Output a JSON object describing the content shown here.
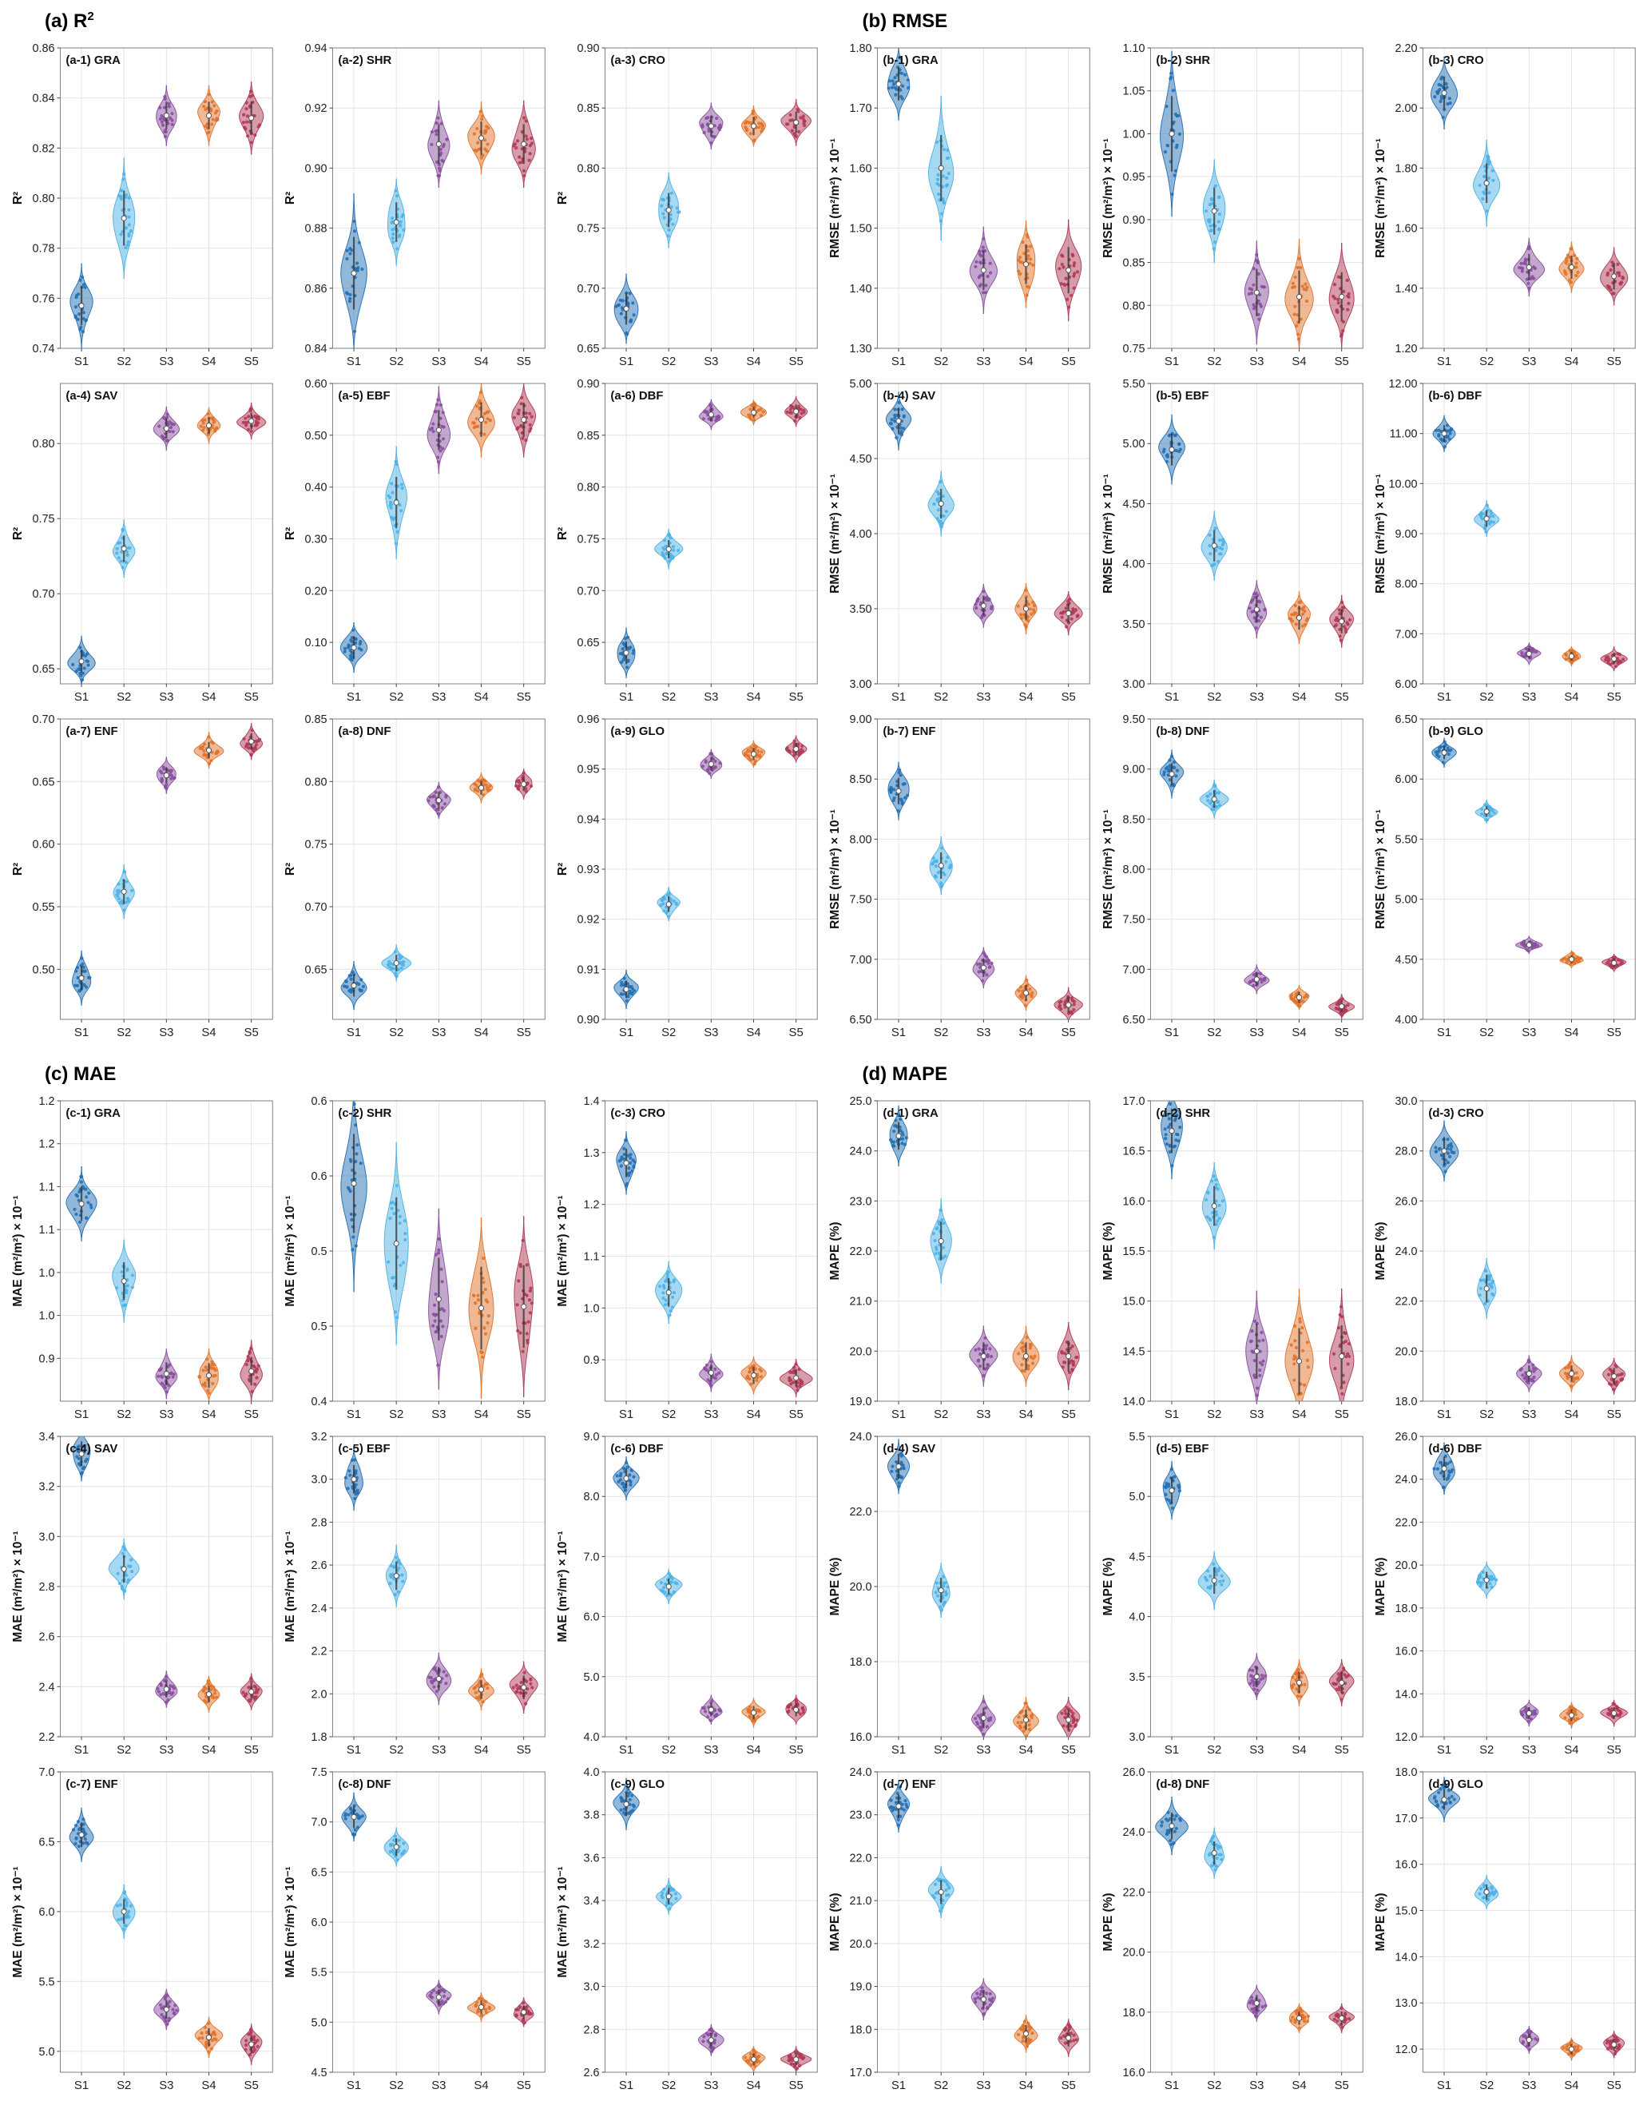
{
  "chart_data": {
    "type": "violin",
    "categories": [
      "S1",
      "S2",
      "S3",
      "S4",
      "S5"
    ],
    "colors": [
      "#2470b3",
      "#4fb2e5",
      "#8a4f9e",
      "#e0732c",
      "#b03a55"
    ],
    "grid": true,
    "panels": [
      {
        "id": "a",
        "title_main": "(a) R",
        "title_sup": "2",
        "ylabel": "R²",
        "subplots": [
          {
            "label": "(a-1) GRA",
            "ylim": [
              0.74,
              0.86
            ],
            "ytick0": 0.74,
            "ystep": 0.02,
            "ydec": 2,
            "medians": [
              0.757,
              0.792,
              0.833,
              0.833,
              0.832
            ],
            "spreads": [
              0.007,
              0.01,
              0.005,
              0.005,
              0.006
            ]
          },
          {
            "label": "(a-2) SHR",
            "ylim": [
              0.84,
              0.94
            ],
            "ytick0": 0.84,
            "ystep": 0.02,
            "ydec": 2,
            "medians": [
              0.865,
              0.882,
              0.908,
              0.91,
              0.908
            ],
            "spreads": [
              0.011,
              0.006,
              0.006,
              0.005,
              0.006
            ]
          },
          {
            "label": "(a-3) CRO",
            "ylim": [
              0.65,
              0.9
            ],
            "ytick0": 0.65,
            "ystep": 0.05,
            "ydec": 2,
            "medians": [
              0.683,
              0.765,
              0.835,
              0.835,
              0.838
            ],
            "spreads": [
              0.012,
              0.013,
              0.008,
              0.007,
              0.008
            ]
          },
          {
            "label": "(a-4) SAV",
            "ylim": [
              0.64,
              0.84
            ],
            "ytick0": 0.65,
            "ystep": 0.05,
            "ydec": 2,
            "medians": [
              0.655,
              0.73,
              0.81,
              0.812,
              0.815
            ],
            "spreads": [
              0.007,
              0.008,
              0.006,
              0.005,
              0.005
            ]
          },
          {
            "label": "(a-5) EBF",
            "ylim": [
              0.02,
              0.6
            ],
            "ytick0": 0.1,
            "ystep": 0.1,
            "ydec": 2,
            "medians": [
              0.09,
              0.37,
              0.51,
              0.53,
              0.53
            ],
            "spreads": [
              0.02,
              0.045,
              0.035,
              0.03,
              0.03
            ]
          },
          {
            "label": "(a-6) DBF",
            "ylim": [
              0.61,
              0.9
            ],
            "ytick0": 0.65,
            "ystep": 0.05,
            "ydec": 2,
            "medians": [
              0.64,
              0.74,
              0.87,
              0.872,
              0.873
            ],
            "spreads": [
              0.01,
              0.008,
              0.006,
              0.005,
              0.006
            ]
          },
          {
            "label": "(a-7) ENF",
            "ylim": [
              0.46,
              0.7
            ],
            "ytick0": 0.5,
            "ystep": 0.05,
            "ydec": 2,
            "medians": [
              0.493,
              0.562,
              0.655,
              0.675,
              0.682
            ],
            "spreads": [
              0.009,
              0.009,
              0.006,
              0.006,
              0.006
            ]
          },
          {
            "label": "(a-8) DNF",
            "ylim": [
              0.61,
              0.85
            ],
            "ytick0": 0.65,
            "ystep": 0.05,
            "ydec": 2,
            "medians": [
              0.637,
              0.655,
              0.785,
              0.795,
              0.798
            ],
            "spreads": [
              0.008,
              0.006,
              0.006,
              0.005,
              0.005
            ]
          },
          {
            "label": "(a-9) GLO",
            "ylim": [
              0.9,
              0.96
            ],
            "ytick0": 0.9,
            "ystep": 0.01,
            "ydec": 2,
            "medians": [
              0.906,
              0.923,
              0.951,
              0.953,
              0.954
            ],
            "spreads": [
              0.0016,
              0.0014,
              0.0012,
              0.0011,
              0.0011
            ]
          }
        ]
      },
      {
        "id": "b",
        "title_main": "(b) RMSE",
        "title_sup": "",
        "ylabel": "RMSE (m²/m²) × 10⁻¹",
        "subplots": [
          {
            "label": "(b-1) GRA",
            "ylim": [
              1.3,
              1.8
            ],
            "ytick0": 1.3,
            "ystep": 0.1,
            "ydec": 2,
            "medians": [
              1.74,
              1.6,
              1.43,
              1.44,
              1.43
            ],
            "spreads": [
              0.025,
              0.05,
              0.03,
              0.03,
              0.035
            ]
          },
          {
            "label": "(b-2) SHR",
            "ylim": [
              0.75,
              1.1
            ],
            "ytick0": 0.75,
            "ystep": 0.05,
            "ydec": 2,
            "medians": [
              1.0,
              0.91,
              0.815,
              0.81,
              0.81
            ],
            "spreads": [
              0.04,
              0.025,
              0.025,
              0.028,
              0.026
            ]
          },
          {
            "label": "(b-3) CRO",
            "ylim": [
              1.2,
              2.2
            ],
            "ytick0": 1.2,
            "ystep": 0.2,
            "ydec": 2,
            "medians": [
              2.05,
              1.75,
              1.47,
              1.47,
              1.44
            ],
            "spreads": [
              0.05,
              0.06,
              0.04,
              0.035,
              0.04
            ]
          },
          {
            "label": "(b-4) SAV",
            "ylim": [
              3.0,
              5.0
            ],
            "ytick0": 3.0,
            "ystep": 0.5,
            "ydec": 2,
            "medians": [
              4.75,
              4.2,
              3.52,
              3.5,
              3.47
            ],
            "spreads": [
              0.08,
              0.09,
              0.06,
              0.07,
              0.06
            ]
          },
          {
            "label": "(b-5) EBF",
            "ylim": [
              3.0,
              5.5
            ],
            "ytick0": 3.0,
            "ystep": 0.5,
            "ydec": 2,
            "medians": [
              4.95,
              4.15,
              3.62,
              3.55,
              3.52
            ],
            "spreads": [
              0.12,
              0.12,
              0.1,
              0.09,
              0.09
            ]
          },
          {
            "label": "(b-6) DBF",
            "ylim": [
              6.0,
              12.0
            ],
            "ytick0": 6.0,
            "ystep": 1.0,
            "ydec": 2,
            "medians": [
              11.0,
              9.3,
              6.6,
              6.55,
              6.5
            ],
            "spreads": [
              0.15,
              0.15,
              0.09,
              0.08,
              0.1
            ]
          },
          {
            "label": "(b-7) ENF",
            "ylim": [
              6.5,
              9.0
            ],
            "ytick0": 6.5,
            "ystep": 0.5,
            "ydec": 2,
            "medians": [
              8.4,
              7.78,
              6.93,
              6.72,
              6.62
            ],
            "spreads": [
              0.1,
              0.1,
              0.07,
              0.06,
              0.06
            ]
          },
          {
            "label": "(b-8) DNF",
            "ylim": [
              6.5,
              9.5
            ],
            "ytick0": 6.5,
            "ystep": 0.5,
            "ydec": 2,
            "medians": [
              8.95,
              8.7,
              6.9,
              6.72,
              6.63
            ],
            "spreads": [
              0.1,
              0.08,
              0.06,
              0.05,
              0.05
            ]
          },
          {
            "label": "(b-9) GLO",
            "ylim": [
              4.0,
              6.5
            ],
            "ytick0": 4.0,
            "ystep": 0.5,
            "ydec": 2,
            "medians": [
              6.22,
              5.73,
              4.62,
              4.5,
              4.47
            ],
            "spreads": [
              0.05,
              0.04,
              0.03,
              0.03,
              0.03
            ]
          }
        ]
      },
      {
        "id": "c",
        "title_main": "(c) MAE",
        "title_sup": "",
        "ylabel": "MAE (m²/m²) × 10⁻¹",
        "subplots": [
          {
            "label": "(c-1) GRA",
            "ylim": [
              0.85,
              1.2
            ],
            "ytick0": 0.9,
            "ystep": 0.05,
            "ydec": 1,
            "medians": [
              1.08,
              0.99,
              0.882,
              0.88,
              0.885
            ],
            "spreads": [
              0.018,
              0.02,
              0.012,
              0.013,
              0.015
            ]
          },
          {
            "label": "(c-2) SHR",
            "ylim": [
              0.4,
              0.6
            ],
            "ytick0": 0.4,
            "ystep": 0.05,
            "ydec": 1,
            "medians": [
              0.545,
              0.505,
              0.468,
              0.462,
              0.463
            ],
            "spreads": [
              0.03,
              0.028,
              0.025,
              0.025,
              0.025
            ]
          },
          {
            "label": "(c-3) CRO",
            "ylim": [
              0.82,
              1.4
            ],
            "ytick0": 0.9,
            "ystep": 0.1,
            "ydec": 1,
            "medians": [
              1.28,
              1.03,
              0.875,
              0.87,
              0.865
            ],
            "spreads": [
              0.025,
              0.025,
              0.015,
              0.015,
              0.015
            ]
          },
          {
            "label": "(c-4) SAV",
            "ylim": [
              2.2,
              3.4
            ],
            "ytick0": 2.2,
            "ystep": 0.2,
            "ydec": 1,
            "medians": [
              3.33,
              2.87,
              2.39,
              2.37,
              2.38
            ],
            "spreads": [
              0.045,
              0.05,
              0.03,
              0.03,
              0.03
            ]
          },
          {
            "label": "(c-5) EBF",
            "ylim": [
              1.8,
              3.2
            ],
            "ytick0": 1.8,
            "ystep": 0.2,
            "ydec": 1,
            "medians": [
              3.0,
              2.55,
              2.07,
              2.02,
              2.03
            ],
            "spreads": [
              0.06,
              0.06,
              0.05,
              0.04,
              0.05
            ]
          },
          {
            "label": "(c-6) DBF",
            "ylim": [
              4.0,
              9.0
            ],
            "ytick0": 4.0,
            "ystep": 1.0,
            "ydec": 1,
            "medians": [
              8.3,
              6.5,
              4.45,
              4.4,
              4.45
            ],
            "spreads": [
              0.15,
              0.12,
              0.1,
              0.1,
              0.1
            ]
          },
          {
            "label": "(c-7) ENF",
            "ylim": [
              4.85,
              7.0
            ],
            "ytick0": 5.0,
            "ystep": 0.5,
            "ydec": 1,
            "medians": [
              6.55,
              6.0,
              5.3,
              5.1,
              5.05
            ],
            "spreads": [
              0.08,
              0.08,
              0.06,
              0.06,
              0.06
            ]
          },
          {
            "label": "(c-8) DNF",
            "ylim": [
              4.5,
              7.5
            ],
            "ytick0": 4.5,
            "ystep": 0.5,
            "ydec": 1,
            "medians": [
              7.05,
              6.75,
              5.25,
              5.15,
              5.1
            ],
            "spreads": [
              0.1,
              0.08,
              0.07,
              0.06,
              0.06
            ]
          },
          {
            "label": "(c-9) GLO",
            "ylim": [
              2.6,
              4.0
            ],
            "ytick0": 2.6,
            "ystep": 0.2,
            "ydec": 1,
            "medians": [
              3.85,
              3.42,
              2.75,
              2.66,
              2.66
            ],
            "spreads": [
              0.05,
              0.035,
              0.03,
              0.025,
              0.025
            ]
          }
        ]
      },
      {
        "id": "d",
        "title_main": "(d) MAPE",
        "title_sup": "",
        "ylabel": "MAPE (%)",
        "subplots": [
          {
            "label": "(d-1) GRA",
            "ylim": [
              19.0,
              25.0
            ],
            "ytick0": 19.0,
            "ystep": 1.0,
            "ydec": 1,
            "medians": [
              24.3,
              22.2,
              19.9,
              19.9,
              19.9
            ],
            "spreads": [
              0.25,
              0.35,
              0.25,
              0.25,
              0.28
            ]
          },
          {
            "label": "(d-2) SHR",
            "ylim": [
              14.0,
              17.0
            ],
            "ytick0": 14.0,
            "ystep": 0.5,
            "ydec": 1,
            "medians": [
              16.7,
              15.95,
              14.5,
              14.4,
              14.45
            ],
            "spreads": [
              0.2,
              0.18,
              0.25,
              0.3,
              0.28
            ]
          },
          {
            "label": "(d-3) CRO",
            "ylim": [
              18.0,
              30.0
            ],
            "ytick0": 18.0,
            "ystep": 2.0,
            "ydec": 1,
            "medians": [
              28.0,
              22.5,
              19.1,
              19.1,
              19.0
            ],
            "spreads": [
              0.5,
              0.5,
              0.3,
              0.3,
              0.3
            ]
          },
          {
            "label": "(d-4) SAV",
            "ylim": [
              16.0,
              24.0
            ],
            "ytick0": 16.0,
            "ystep": 2.0,
            "ydec": 1,
            "medians": [
              23.2,
              19.9,
              16.5,
              16.45,
              16.45
            ],
            "spreads": [
              0.3,
              0.3,
              0.25,
              0.25,
              0.25
            ]
          },
          {
            "label": "(d-5) EBF",
            "ylim": [
              3.0,
              5.5
            ],
            "ytick0": 3.0,
            "ystep": 0.5,
            "ydec": 1,
            "medians": [
              5.05,
              4.3,
              3.5,
              3.45,
              3.45
            ],
            "spreads": [
              0.1,
              0.1,
              0.08,
              0.08,
              0.08
            ]
          },
          {
            "label": "(d-6) DBF",
            "ylim": [
              12.0,
              26.0
            ],
            "ytick0": 12.0,
            "ystep": 2.0,
            "ydec": 1,
            "medians": [
              24.5,
              19.3,
              13.1,
              13.0,
              13.1
            ],
            "spreads": [
              0.5,
              0.35,
              0.25,
              0.25,
              0.25
            ]
          },
          {
            "label": "(d-7) ENF",
            "ylim": [
              17.0,
              24.0
            ],
            "ytick0": 17.0,
            "ystep": 1.0,
            "ydec": 1,
            "medians": [
              23.2,
              21.2,
              18.7,
              17.9,
              17.8
            ],
            "spreads": [
              0.25,
              0.25,
              0.2,
              0.18,
              0.18
            ]
          },
          {
            "label": "(d-8) DNF",
            "ylim": [
              16.0,
              26.0
            ],
            "ytick0": 16.0,
            "ystep": 2.0,
            "ydec": 1,
            "medians": [
              24.2,
              23.3,
              18.3,
              17.8,
              17.8
            ],
            "spreads": [
              0.4,
              0.35,
              0.25,
              0.2,
              0.2
            ]
          },
          {
            "label": "(d-9) GLO",
            "ylim": [
              11.5,
              18.0
            ],
            "ytick0": 12.0,
            "ystep": 1.0,
            "ydec": 1,
            "medians": [
              17.4,
              15.4,
              12.2,
              12.0,
              12.1
            ],
            "spreads": [
              0.2,
              0.15,
              0.12,
              0.1,
              0.12
            ]
          }
        ]
      }
    ]
  }
}
